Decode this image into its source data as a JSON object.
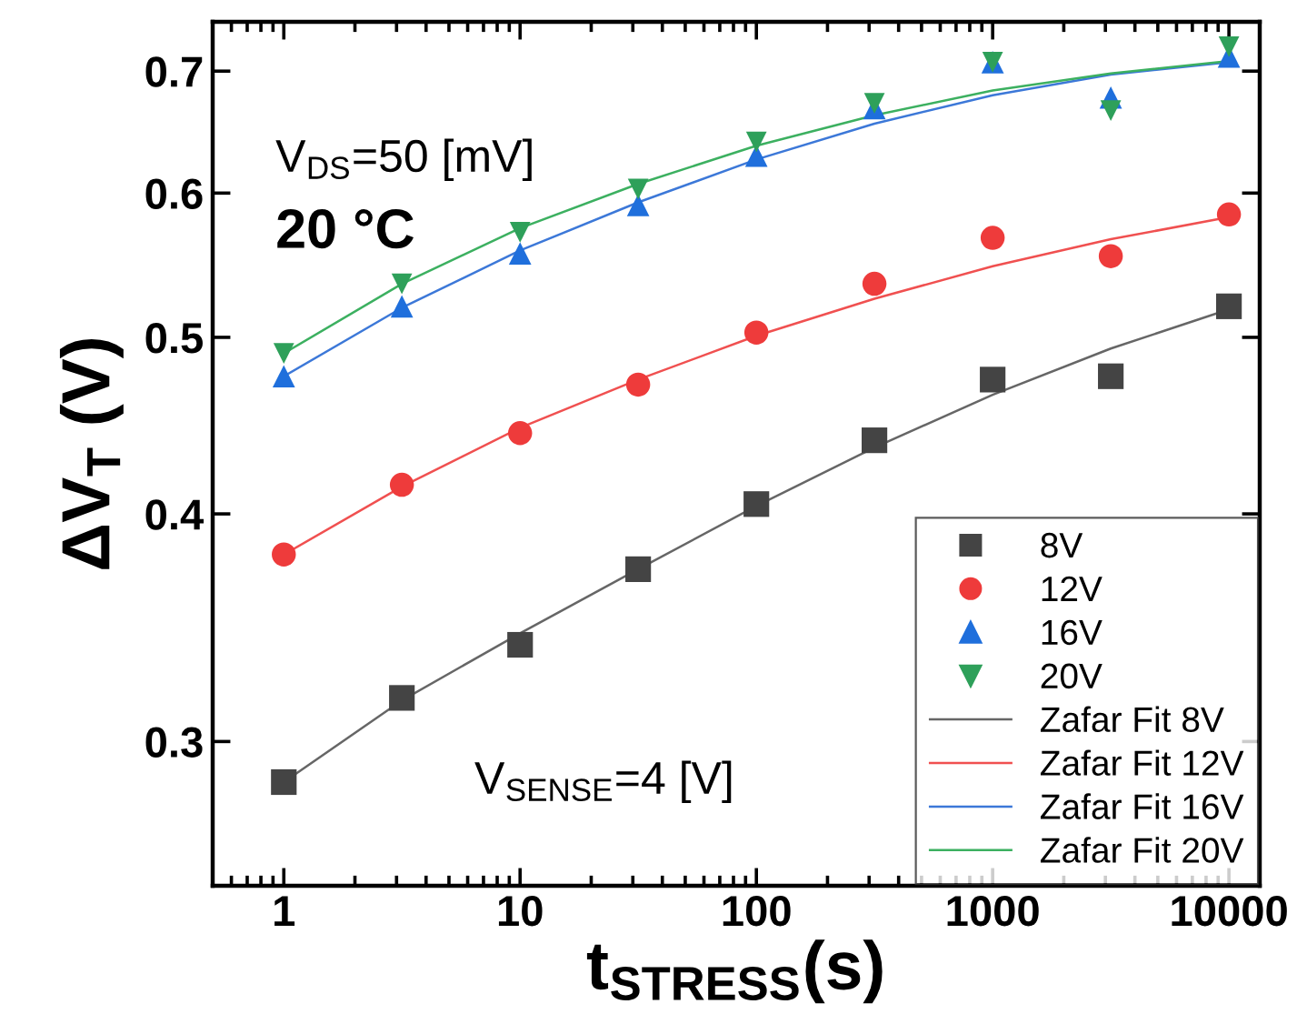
{
  "chart_data": {
    "type": "scatter",
    "xlabel": "t$_{STRESS}$(s)",
    "ylabel": "ΔV$_{T}$ (V)",
    "annotations": [
      "V$_{DS}$=50 [mV]",
      "20 °C",
      "V$_{SENSE}$=4 [V]"
    ],
    "x": [
      1,
      3.16,
      10,
      31.6,
      100,
      316,
      1000,
      3162,
      10000
    ],
    "series": [
      {
        "name": "8V",
        "color": "#444444",
        "marker": "square",
        "values": [
          0.285,
          0.317,
          0.339,
          0.373,
          0.405,
          0.439,
          0.474,
          0.476,
          0.52
        ]
      },
      {
        "name": "12V",
        "color": "#ee3b3b",
        "marker": "circle",
        "values": [
          0.38,
          0.415,
          0.443,
          0.471,
          0.503,
          0.535,
          0.567,
          0.554,
          0.584
        ]
      },
      {
        "name": "16V",
        "color": "#1f6fdc",
        "marker": "triangle",
        "values": [
          0.476,
          0.52,
          0.556,
          0.591,
          0.629,
          0.668,
          0.708,
          0.677,
          0.713
        ]
      },
      {
        "name": "20V",
        "color": "#2ea05a",
        "marker": "triangle_down",
        "values": [
          0.49,
          0.535,
          0.571,
          0.603,
          0.64,
          0.672,
          0.708,
          0.666,
          0.722
        ]
      },
      {
        "name": "Zafar Fit 8V",
        "type": "line",
        "color": "#666666",
        "values": [
          0.285,
          0.316,
          0.344,
          0.373,
          0.404,
          0.435,
          0.465,
          0.493,
          0.518
        ]
      },
      {
        "name": "Zafar Fit 12V",
        "type": "line",
        "color": "#f05050",
        "values": [
          0.38,
          0.414,
          0.446,
          0.474,
          0.501,
          0.525,
          0.547,
          0.566,
          0.582
        ]
      },
      {
        "name": "Zafar Fit 16V",
        "type": "line",
        "color": "#3c78d8",
        "values": [
          0.476,
          0.519,
          0.558,
          0.593,
          0.626,
          0.655,
          0.679,
          0.697,
          0.708
        ]
      },
      {
        "name": "Zafar Fit 20V",
        "type": "line",
        "color": "#3cb060",
        "values": [
          0.49,
          0.535,
          0.574,
          0.607,
          0.637,
          0.662,
          0.683,
          0.698,
          0.709
        ]
      }
    ],
    "log": "xy",
    "xlim": [
      0.5,
      13500
    ],
    "ylim": [
      0.25,
      0.745
    ],
    "xticks": [
      1,
      10,
      100,
      1000,
      10000
    ],
    "yticks": [
      0.3,
      0.4,
      0.5,
      0.6,
      0.7
    ],
    "grid": false,
    "legend": "bottom right"
  }
}
